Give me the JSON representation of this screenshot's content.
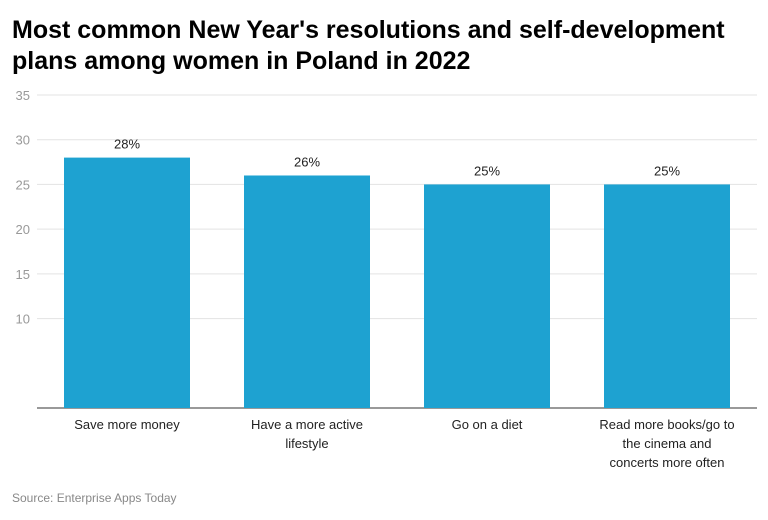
{
  "chart_data": {
    "type": "bar",
    "title": "Most common New Year's resolutions and self-development plans among women in Poland in 2022",
    "categories": [
      "Save more money",
      "Have a more active lifestyle",
      "Go on a diet",
      "Read more books/go to the cinema and concerts more often"
    ],
    "values": [
      28,
      26,
      25,
      25
    ],
    "value_labels": [
      "28%",
      "26%",
      "25%",
      "25%"
    ],
    "color": "#1ea2d1",
    "ylim": [
      0,
      35
    ],
    "yticks": [
      10,
      15,
      20,
      25,
      30,
      35
    ],
    "grid": true,
    "source": "Source: Enterprise Apps Today"
  }
}
